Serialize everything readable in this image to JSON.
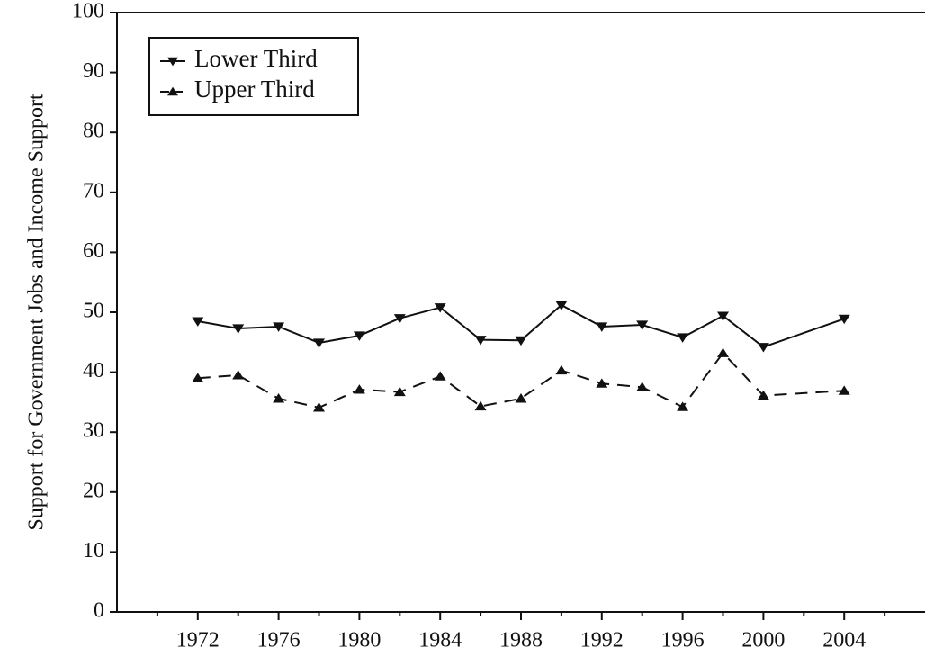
{
  "chart_data": {
    "type": "line",
    "ylabel": "Support for Government Jobs and Income Support",
    "x": [
      1972,
      1974,
      1976,
      1978,
      1980,
      1982,
      1984,
      1986,
      1988,
      1990,
      1992,
      1994,
      1996,
      1998,
      2000,
      2004
    ],
    "series": [
      {
        "name": "Lower Third",
        "color": "#111111",
        "marker": "down",
        "dash": false,
        "values": [
          48.5,
          47.3,
          47.6,
          44.9,
          46.1,
          49.0,
          50.8,
          45.4,
          45.3,
          51.2,
          47.6,
          47.9,
          45.8,
          49.4,
          44.2,
          48.9
        ]
      },
      {
        "name": "Upper Third",
        "color": "#111111",
        "marker": "up",
        "dash": true,
        "values": [
          39.0,
          39.5,
          35.6,
          34.1,
          37.1,
          36.7,
          39.3,
          34.3,
          35.6,
          40.3,
          38.1,
          37.5,
          34.2,
          43.2,
          36.1,
          36.9
        ]
      }
    ],
    "xlim": [
      1968,
      2008
    ],
    "xticks": [
      1972,
      1976,
      1980,
      1984,
      1988,
      1992,
      1996,
      2000,
      2004
    ],
    "xminorticks": [
      1970,
      1974,
      1978,
      1982,
      1986,
      1990,
      1994,
      1998,
      2002,
      2006
    ],
    "ylim": [
      0,
      100
    ],
    "yticks": [
      0,
      10,
      20,
      30,
      40,
      50,
      60,
      70,
      80,
      90,
      100
    ],
    "legend": "upper-left"
  }
}
